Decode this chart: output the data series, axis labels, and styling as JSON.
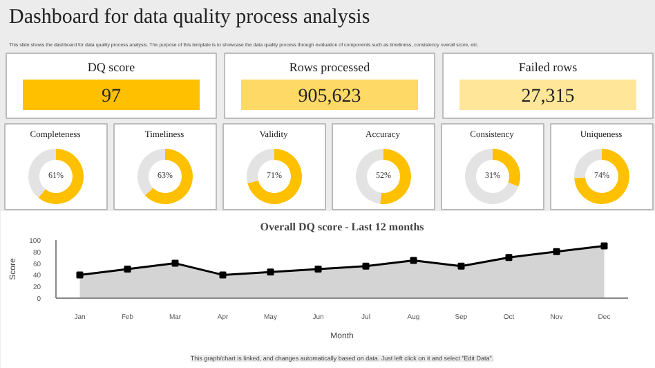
{
  "chart_data": [
    {
      "type": "other",
      "title": "Dashboard for data quality process analysis",
      "subtitle": "This slide shows the dashboard for data quality process analysis. The purpose of this template is to showcase the data quality process through evaluation of components such as timeliness, consistency overall score, etc."
    },
    {
      "type": "other",
      "title": "DQ score",
      "values": [
        97
      ],
      "colors": [
        "#ffc000"
      ],
      "value_labels": [
        "97"
      ]
    },
    {
      "type": "other",
      "title": "Rows processed",
      "values": [
        905623
      ],
      "colors": [
        "#ffd966"
      ],
      "value_labels": [
        "905,623"
      ]
    },
    {
      "type": "other",
      "title": "Failed rows",
      "values": [
        27315
      ],
      "colors": [
        "#ffe699"
      ],
      "value_labels": [
        "27,315"
      ]
    },
    {
      "type": "donut",
      "title": "Completeness",
      "categories": [
        null,
        null
      ],
      "values": [
        61,
        39
      ],
      "colors": [
        "#ffc000",
        "#e3e3e3"
      ],
      "annotations": [
        "61%"
      ]
    },
    {
      "type": "donut",
      "title": "Timeliness",
      "categories": [
        null,
        null
      ],
      "values": [
        63,
        37
      ],
      "colors": [
        "#ffc000",
        "#e3e3e3"
      ],
      "annotations": [
        "63%"
      ]
    },
    {
      "type": "donut",
      "title": "Validity",
      "categories": [
        null,
        null
      ],
      "values": [
        71,
        29
      ],
      "colors": [
        "#ffc000",
        "#e3e3e3"
      ],
      "annotations": [
        "71%"
      ]
    },
    {
      "type": "donut",
      "title": "Accuracy",
      "categories": [
        null,
        null
      ],
      "values": [
        52,
        48
      ],
      "colors": [
        "#ffc000",
        "#e3e3e3"
      ],
      "annotations": [
        "52%"
      ]
    },
    {
      "type": "donut",
      "title": "Consistency",
      "categories": [
        null,
        null
      ],
      "values": [
        31,
        69
      ],
      "colors": [
        "#ffc000",
        "#e3e3e3"
      ],
      "annotations": [
        "31%"
      ]
    },
    {
      "type": "donut",
      "title": "Uniqueness",
      "categories": [
        null,
        null
      ],
      "values": [
        74,
        26
      ],
      "colors": [
        "#ffc000",
        "#e3e3e3"
      ],
      "annotations": [
        "74%"
      ]
    },
    {
      "type": "area",
      "title": "Overall DQ score - Last 12 months",
      "xlabel": "Month",
      "ylabel": "Score",
      "categories": [
        "Jan",
        "Feb",
        "Mar",
        "Apr",
        "May",
        "Jun",
        "Jul",
        "Aug",
        "Sep",
        "Oct",
        "Nov",
        "Dec"
      ],
      "ylim": [
        0,
        100
      ],
      "yticks": [
        0,
        20,
        40,
        60,
        80,
        100
      ],
      "grid": false,
      "marker": "square",
      "series": [
        {
          "type": "area",
          "color": "#d4d4d4",
          "values": [
            40,
            50,
            60,
            40,
            45,
            50,
            55,
            65,
            55,
            70,
            80,
            90
          ]
        }
      ],
      "annotations": [
        "This graph/chart is linked, and changes automatically based on data. Just left click on it and select \"Edit Data\"."
      ]
    }
  ]
}
